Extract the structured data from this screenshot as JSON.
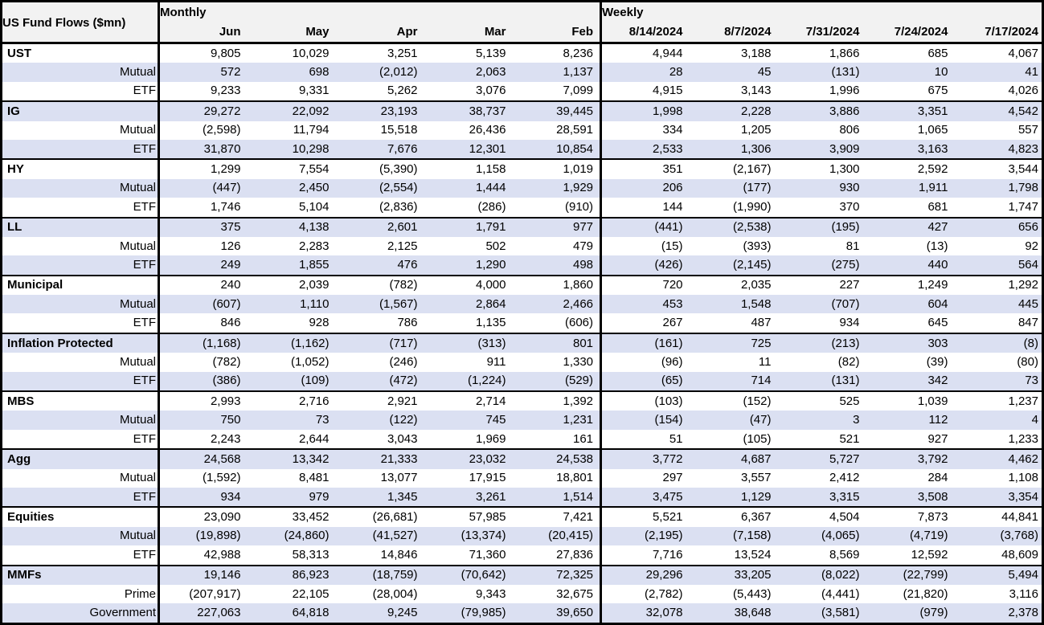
{
  "chart_data": {
    "type": "table",
    "title": "US Fund Flows ($mn)",
    "header": {
      "monthly_label": "Monthly",
      "weekly_label": "Weekly",
      "monthly_columns": [
        "Jun",
        "May",
        "Apr",
        "Mar",
        "Feb"
      ],
      "weekly_columns": [
        "8/14/2024",
        "8/7/2024",
        "7/31/2024",
        "7/24/2024",
        "7/17/2024"
      ]
    },
    "groups": [
      {
        "name": "UST",
        "rows": [
          {
            "label": "UST",
            "monthly": [
              "9,805",
              "10,029",
              "3,251",
              "5,139",
              "8,236"
            ],
            "weekly": [
              "4,944",
              "3,188",
              "1,866",
              "685",
              "4,067"
            ]
          },
          {
            "label": "Mutual",
            "monthly": [
              "572",
              "698",
              "(2,012)",
              "2,063",
              "1,137"
            ],
            "weekly": [
              "28",
              "45",
              "(131)",
              "10",
              "41"
            ]
          },
          {
            "label": "ETF",
            "monthly": [
              "9,233",
              "9,331",
              "5,262",
              "3,076",
              "7,099"
            ],
            "weekly": [
              "4,915",
              "3,143",
              "1,996",
              "675",
              "4,026"
            ]
          }
        ]
      },
      {
        "name": "IG",
        "rows": [
          {
            "label": "IG",
            "monthly": [
              "29,272",
              "22,092",
              "23,193",
              "38,737",
              "39,445"
            ],
            "weekly": [
              "1,998",
              "2,228",
              "3,886",
              "3,351",
              "4,542"
            ]
          },
          {
            "label": "Mutual",
            "monthly": [
              "(2,598)",
              "11,794",
              "15,518",
              "26,436",
              "28,591"
            ],
            "weekly": [
              "334",
              "1,205",
              "806",
              "1,065",
              "557"
            ]
          },
          {
            "label": "ETF",
            "monthly": [
              "31,870",
              "10,298",
              "7,676",
              "12,301",
              "10,854"
            ],
            "weekly": [
              "2,533",
              "1,306",
              "3,909",
              "3,163",
              "4,823"
            ]
          }
        ]
      },
      {
        "name": "HY",
        "rows": [
          {
            "label": "HY",
            "monthly": [
              "1,299",
              "7,554",
              "(5,390)",
              "1,158",
              "1,019"
            ],
            "weekly": [
              "351",
              "(2,167)",
              "1,300",
              "2,592",
              "3,544"
            ]
          },
          {
            "label": "Mutual",
            "monthly": [
              "(447)",
              "2,450",
              "(2,554)",
              "1,444",
              "1,929"
            ],
            "weekly": [
              "206",
              "(177)",
              "930",
              "1,911",
              "1,798"
            ]
          },
          {
            "label": "ETF",
            "monthly": [
              "1,746",
              "5,104",
              "(2,836)",
              "(286)",
              "(910)"
            ],
            "weekly": [
              "144",
              "(1,990)",
              "370",
              "681",
              "1,747"
            ]
          }
        ]
      },
      {
        "name": "LL",
        "rows": [
          {
            "label": "LL",
            "monthly": [
              "375",
              "4,138",
              "2,601",
              "1,791",
              "977"
            ],
            "weekly": [
              "(441)",
              "(2,538)",
              "(195)",
              "427",
              "656"
            ]
          },
          {
            "label": "Mutual",
            "monthly": [
              "126",
              "2,283",
              "2,125",
              "502",
              "479"
            ],
            "weekly": [
              "(15)",
              "(393)",
              "81",
              "(13)",
              "92"
            ]
          },
          {
            "label": "ETF",
            "monthly": [
              "249",
              "1,855",
              "476",
              "1,290",
              "498"
            ],
            "weekly": [
              "(426)",
              "(2,145)",
              "(275)",
              "440",
              "564"
            ]
          }
        ]
      },
      {
        "name": "Municipal",
        "rows": [
          {
            "label": "Municipal",
            "monthly": [
              "240",
              "2,039",
              "(782)",
              "4,000",
              "1,860"
            ],
            "weekly": [
              "720",
              "2,035",
              "227",
              "1,249",
              "1,292"
            ]
          },
          {
            "label": "Mutual",
            "monthly": [
              "(607)",
              "1,110",
              "(1,567)",
              "2,864",
              "2,466"
            ],
            "weekly": [
              "453",
              "1,548",
              "(707)",
              "604",
              "445"
            ]
          },
          {
            "label": "ETF",
            "monthly": [
              "846",
              "928",
              "786",
              "1,135",
              "(606)"
            ],
            "weekly": [
              "267",
              "487",
              "934",
              "645",
              "847"
            ]
          }
        ]
      },
      {
        "name": "Inflation Protected",
        "rows": [
          {
            "label": "Inflation Protected",
            "monthly": [
              "(1,168)",
              "(1,162)",
              "(717)",
              "(313)",
              "801"
            ],
            "weekly": [
              "(161)",
              "725",
              "(213)",
              "303",
              "(8)"
            ]
          },
          {
            "label": "Mutual",
            "monthly": [
              "(782)",
              "(1,052)",
              "(246)",
              "911",
              "1,330"
            ],
            "weekly": [
              "(96)",
              "11",
              "(82)",
              "(39)",
              "(80)"
            ]
          },
          {
            "label": "ETF",
            "monthly": [
              "(386)",
              "(109)",
              "(472)",
              "(1,224)",
              "(529)"
            ],
            "weekly": [
              "(65)",
              "714",
              "(131)",
              "342",
              "73"
            ]
          }
        ]
      },
      {
        "name": "MBS",
        "rows": [
          {
            "label": "MBS",
            "monthly": [
              "2,993",
              "2,716",
              "2,921",
              "2,714",
              "1,392"
            ],
            "weekly": [
              "(103)",
              "(152)",
              "525",
              "1,039",
              "1,237"
            ]
          },
          {
            "label": "Mutual",
            "monthly": [
              "750",
              "73",
              "(122)",
              "745",
              "1,231"
            ],
            "weekly": [
              "(154)",
              "(47)",
              "3",
              "112",
              "4"
            ]
          },
          {
            "label": "ETF",
            "monthly": [
              "2,243",
              "2,644",
              "3,043",
              "1,969",
              "161"
            ],
            "weekly": [
              "51",
              "(105)",
              "521",
              "927",
              "1,233"
            ]
          }
        ]
      },
      {
        "name": "Agg",
        "rows": [
          {
            "label": "Agg",
            "monthly": [
              "24,568",
              "13,342",
              "21,333",
              "23,032",
              "24,538"
            ],
            "weekly": [
              "3,772",
              "4,687",
              "5,727",
              "3,792",
              "4,462"
            ]
          },
          {
            "label": "Mutual",
            "monthly": [
              "(1,592)",
              "8,481",
              "13,077",
              "17,915",
              "18,801"
            ],
            "weekly": [
              "297",
              "3,557",
              "2,412",
              "284",
              "1,108"
            ]
          },
          {
            "label": "ETF",
            "monthly": [
              "934",
              "979",
              "1,345",
              "3,261",
              "1,514"
            ],
            "weekly": [
              "3,475",
              "1,129",
              "3,315",
              "3,508",
              "3,354"
            ]
          }
        ]
      },
      {
        "name": "Equities",
        "rows": [
          {
            "label": "Equities",
            "monthly": [
              "23,090",
              "33,452",
              "(26,681)",
              "57,985",
              "7,421"
            ],
            "weekly": [
              "5,521",
              "6,367",
              "4,504",
              "7,873",
              "44,841"
            ]
          },
          {
            "label": "Mutual",
            "monthly": [
              "(19,898)",
              "(24,860)",
              "(41,527)",
              "(13,374)",
              "(20,415)"
            ],
            "weekly": [
              "(2,195)",
              "(7,158)",
              "(4,065)",
              "(4,719)",
              "(3,768)"
            ]
          },
          {
            "label": "ETF",
            "monthly": [
              "42,988",
              "58,313",
              "14,846",
              "71,360",
              "27,836"
            ],
            "weekly": [
              "7,716",
              "13,524",
              "8,569",
              "12,592",
              "48,609"
            ]
          }
        ]
      },
      {
        "name": "MMFs",
        "rows": [
          {
            "label": "MMFs",
            "monthly": [
              "19,146",
              "86,923",
              "(18,759)",
              "(70,642)",
              "72,325"
            ],
            "weekly": [
              "29,296",
              "33,205",
              "(8,022)",
              "(22,799)",
              "5,494"
            ]
          },
          {
            "label": "Prime",
            "monthly": [
              "(207,917)",
              "22,105",
              "(28,004)",
              "9,343",
              "32,675"
            ],
            "weekly": [
              "(2,782)",
              "(5,443)",
              "(4,441)",
              "(21,820)",
              "3,116"
            ]
          },
          {
            "label": "Government",
            "monthly": [
              "227,063",
              "64,818",
              "9,245",
              "(79,985)",
              "39,650"
            ],
            "weekly": [
              "32,078",
              "38,648",
              "(3,581)",
              "(979)",
              "2,378"
            ]
          }
        ]
      }
    ]
  },
  "colors": {
    "band": "#dbe0f2",
    "header_bg": "#f2f2f2",
    "border": "#000000",
    "text": "#000000"
  }
}
